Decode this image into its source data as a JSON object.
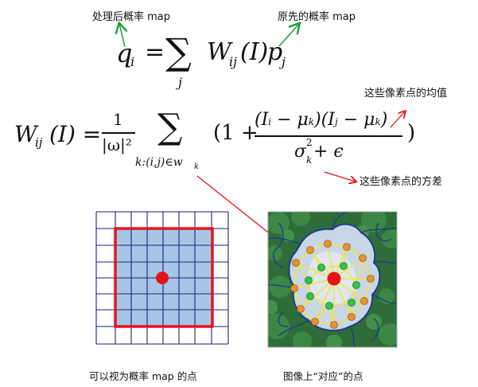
{
  "annotations": {
    "processed_map": "处理后概率 map",
    "original_map": "原先的概率 map",
    "mean_note": "这些像素点的均值",
    "variance_note": "这些像素点的方差"
  },
  "formula1": {
    "lhs": "q",
    "lhs_sub": "i",
    "equals": "=",
    "sum": "∑",
    "sum_index": "j",
    "w": "W",
    "w_sub": "ij",
    "arg": "(I)",
    "p": "p",
    "p_sub": "j"
  },
  "formula2": {
    "lhs": "W",
    "lhs_sub": "ij",
    "lhs_arg": "(I) =",
    "frac_num": "1",
    "frac_den": "|ω|²",
    "sum": "∑",
    "sum_index": "k:(i,j)∈w",
    "sum_index_sub": "k",
    "open": "(1 +",
    "numerator": "(I",
    "num_i": "i",
    "num_minus": " − μ",
    "num_k": "k",
    "num_mid": ")(I",
    "num_j": "j",
    "num_minus2": " − μ",
    "num_k2": "k",
    "num_close": ")",
    "denominator": "σ",
    "den_sup": "2",
    "den_sub": "k",
    "den_rest": " + ϵ",
    "close": ")"
  },
  "captions": {
    "left": "可以视为概率 map 的点",
    "right": "图像上“对应”的点"
  },
  "colors": {
    "grid_line": "#1a237e",
    "window_fill": "#a7c6e6",
    "window_border": "#e5141b",
    "center_dot": "#e5141b",
    "note_arrow": "#e5141b",
    "label_arrow": "#1e9e3e",
    "mesh_line": "#f1e63b",
    "node_orange": "#e99235",
    "node_green": "#33c24d"
  }
}
